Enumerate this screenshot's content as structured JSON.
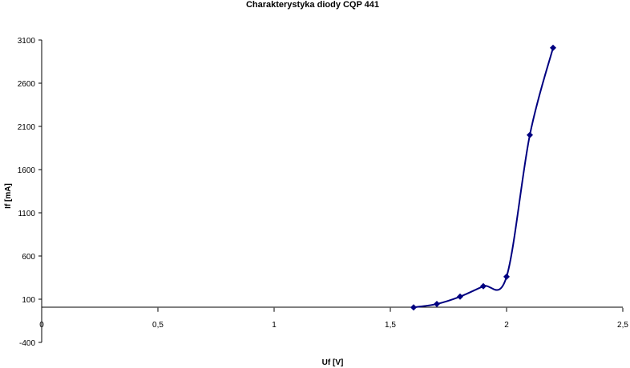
{
  "chart_data": {
    "type": "scatter",
    "title": "Charakterystyka diody CQP 441",
    "xlabel": "Uf [V]",
    "ylabel": "If [mA]",
    "xlim": [
      0,
      2.5
    ],
    "ylim": [
      -400,
      3100
    ],
    "x_ticks": [
      "0",
      "0,5",
      "1",
      "1,5",
      "2",
      "2,5"
    ],
    "y_ticks": [
      "3100",
      "2600",
      "2100",
      "1600",
      "1100",
      "600",
      "100",
      "-400"
    ],
    "grid": false,
    "legend": "none",
    "series": [
      {
        "x": [
          1.6,
          1.7,
          1.8,
          1.9,
          2.0,
          2.1,
          2.2
        ],
        "y": [
          5,
          45,
          130,
          250,
          360,
          2000,
          3010
        ],
        "color": "#000080",
        "smooth": true,
        "marker": "diamond"
      }
    ]
  }
}
